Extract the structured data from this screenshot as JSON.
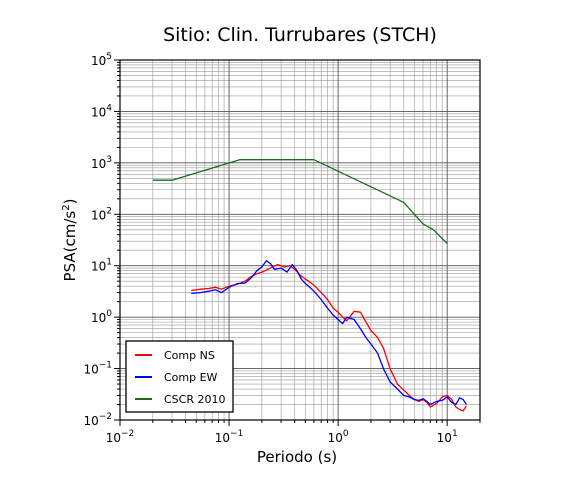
{
  "chart_data": {
    "type": "line",
    "title": "Sitio: Clin. Turrubares (STCH)",
    "xlabel": "Periodo (s)",
    "ylabel": "PSA(cm/s",
    "ylabel_sup": "2",
    "ylabel_end": ")",
    "xscale": "log",
    "yscale": "log",
    "xlim": [
      0.01,
      20
    ],
    "ylim": [
      0.01,
      100000
    ],
    "grid": true,
    "legend_position": "bottom-left",
    "x_ticks": [
      {
        "base": "10",
        "exp": "−2",
        "value": 0.01
      },
      {
        "base": "10",
        "exp": "−1",
        "value": 0.1
      },
      {
        "base": "10",
        "exp": "0",
        "value": 1
      },
      {
        "base": "10",
        "exp": "1",
        "value": 10
      }
    ],
    "y_ticks": [
      {
        "base": "10",
        "exp": "−2",
        "value": 0.01
      },
      {
        "base": "10",
        "exp": "−1",
        "value": 0.1
      },
      {
        "base": "10",
        "exp": "0",
        "value": 1
      },
      {
        "base": "10",
        "exp": "1",
        "value": 10
      },
      {
        "base": "10",
        "exp": "2",
        "value": 100
      },
      {
        "base": "10",
        "exp": "3",
        "value": 1000
      },
      {
        "base": "10",
        "exp": "4",
        "value": 10000
      },
      {
        "base": "10",
        "exp": "5",
        "value": 100000
      }
    ],
    "series": [
      {
        "name": "Comp NS",
        "color": "#ff0000",
        "x": [
          0.045,
          0.055,
          0.065,
          0.075,
          0.085,
          0.1,
          0.12,
          0.14,
          0.16,
          0.18,
          0.2,
          0.22,
          0.25,
          0.28,
          0.32,
          0.36,
          0.4,
          0.45,
          0.5,
          0.55,
          0.6,
          0.7,
          0.8,
          0.9,
          1.0,
          1.1,
          1.2,
          1.4,
          1.6,
          1.8,
          2.0,
          2.3,
          2.6,
          3.0,
          3.5,
          4.0,
          4.5,
          5.0,
          5.5,
          6.0,
          6.5,
          7.0,
          8.0,
          9.0,
          10.0,
          11.0,
          12.0,
          13.0,
          14.0,
          15.0
        ],
        "y": [
          3.3,
          3.5,
          3.6,
          3.8,
          3.5,
          4.0,
          4.4,
          5.0,
          6.2,
          7.0,
          7.5,
          8.2,
          9.5,
          10.5,
          9.5,
          10.0,
          8.5,
          6.5,
          5.5,
          4.8,
          4.2,
          3.0,
          2.2,
          1.5,
          1.25,
          1.0,
          0.85,
          1.3,
          1.25,
          0.8,
          0.55,
          0.4,
          0.25,
          0.1,
          0.05,
          0.038,
          0.03,
          0.025,
          0.023,
          0.025,
          0.022,
          0.018,
          0.021,
          0.028,
          0.03,
          0.025,
          0.018,
          0.016,
          0.015,
          0.019
        ]
      },
      {
        "name": "Comp EW",
        "color": "#0000ff",
        "x": [
          0.045,
          0.055,
          0.065,
          0.075,
          0.085,
          0.1,
          0.12,
          0.14,
          0.16,
          0.18,
          0.2,
          0.22,
          0.24,
          0.26,
          0.3,
          0.34,
          0.38,
          0.42,
          0.46,
          0.5,
          0.55,
          0.6,
          0.7,
          0.8,
          0.9,
          1.0,
          1.1,
          1.2,
          1.4,
          1.6,
          1.8,
          2.0,
          2.3,
          2.6,
          3.0,
          3.5,
          4.0,
          4.5,
          5.0,
          5.5,
          6.0,
          6.5,
          7.0,
          8.0,
          9.0,
          10.0,
          11.0,
          12.0,
          13.0,
          14.0,
          15.0
        ],
        "y": [
          2.9,
          3.0,
          3.2,
          3.4,
          3.0,
          3.8,
          4.5,
          4.6,
          5.8,
          8.0,
          9.5,
          12.5,
          11.0,
          8.5,
          9.0,
          7.5,
          10.5,
          8.0,
          5.5,
          4.5,
          3.8,
          3.2,
          2.2,
          1.5,
          1.1,
          0.9,
          0.75,
          1.0,
          0.9,
          0.6,
          0.4,
          0.3,
          0.2,
          0.1,
          0.055,
          0.04,
          0.03,
          0.028,
          0.025,
          0.024,
          0.026,
          0.023,
          0.02,
          0.023,
          0.024,
          0.028,
          0.022,
          0.02,
          0.027,
          0.025,
          0.02
        ]
      },
      {
        "name": "CSCR 2010",
        "color": "#1a6e1a",
        "x": [
          0.02,
          0.03,
          0.125,
          0.6,
          4.0,
          6.0,
          7.5,
          10.0
        ],
        "y": [
          460,
          460,
          1150,
          1150,
          170,
          65,
          50,
          27
        ]
      }
    ]
  }
}
